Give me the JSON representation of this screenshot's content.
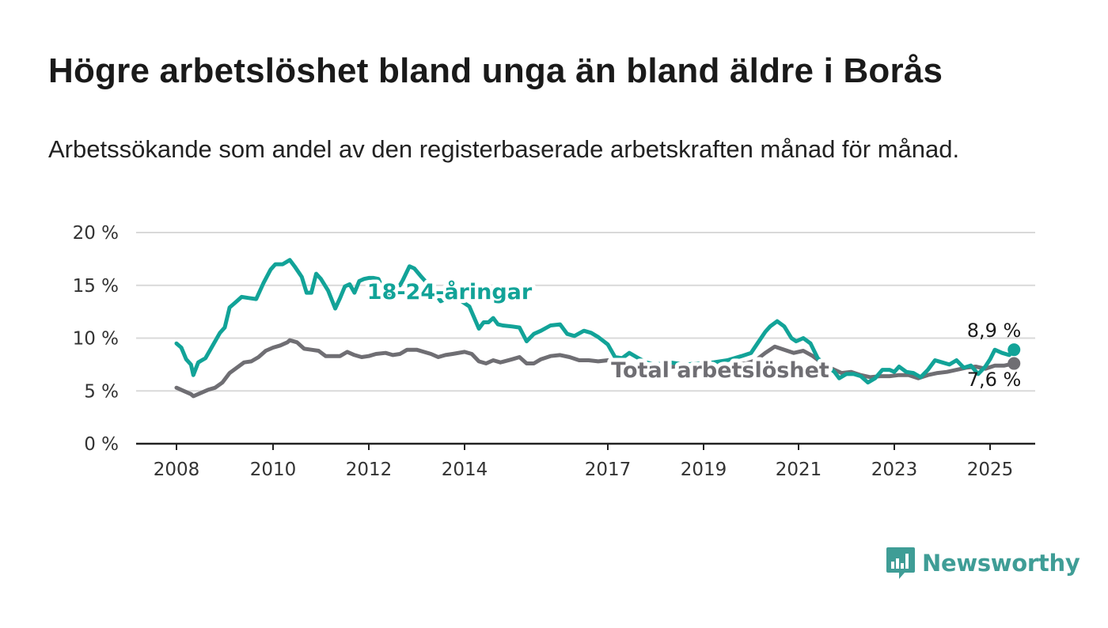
{
  "title": "Högre arbetslöshet bland unga än bland äldre i Borås",
  "subtitle": "Arbetssökande som andel av den registerbaserade arbetskraften månad för månad.",
  "brand": {
    "name": "Newsworthy",
    "color": "#3f9d96",
    "icon": "newsworthy-chart-icon"
  },
  "colors": {
    "youth": "#12a398",
    "total": "#6f6e73",
    "grid": "#d9d9d9",
    "axis": "#222222"
  },
  "chart_data": {
    "type": "line",
    "ylim": [
      0,
      20
    ],
    "xlim": [
      2008,
      2025.3
    ],
    "y_ticks": [
      0,
      5,
      10,
      15,
      20
    ],
    "y_tick_labels": [
      "0 %",
      "5 %",
      "10 %",
      "15 %",
      "20 %"
    ],
    "x_ticks": [
      2008,
      2010,
      2012,
      2014,
      2017,
      2019,
      2021,
      2023,
      2025
    ],
    "x_tick_labels": [
      "2008",
      "2010",
      "2012",
      "2014",
      "2017",
      "2019",
      "2021",
      "2023",
      "2025"
    ],
    "grid": true,
    "series": [
      {
        "name": "18-24-åringar",
        "color": "#12a398",
        "end_label": "8,9 %",
        "points": [
          [
            2008.0,
            9.5
          ],
          [
            2008.1,
            9.1
          ],
          [
            2008.2,
            8.0
          ],
          [
            2008.3,
            7.5
          ],
          [
            2008.35,
            6.5
          ],
          [
            2008.45,
            7.7
          ],
          [
            2008.6,
            8.1
          ],
          [
            2008.75,
            9.3
          ],
          [
            2008.9,
            10.5
          ],
          [
            2009.0,
            11.0
          ],
          [
            2009.1,
            12.9
          ],
          [
            2009.25,
            13.5
          ],
          [
            2009.35,
            13.9
          ],
          [
            2009.5,
            13.8
          ],
          [
            2009.65,
            13.7
          ],
          [
            2009.8,
            15.2
          ],
          [
            2009.95,
            16.5
          ],
          [
            2010.05,
            17.0
          ],
          [
            2010.2,
            17.0
          ],
          [
            2010.35,
            17.4
          ],
          [
            2010.45,
            16.8
          ],
          [
            2010.6,
            15.8
          ],
          [
            2010.7,
            14.3
          ],
          [
            2010.8,
            14.3
          ],
          [
            2010.9,
            16.1
          ],
          [
            2011.0,
            15.6
          ],
          [
            2011.15,
            14.5
          ],
          [
            2011.3,
            12.8
          ],
          [
            2011.4,
            13.8
          ],
          [
            2011.5,
            14.9
          ],
          [
            2011.6,
            15.1
          ],
          [
            2011.7,
            14.3
          ],
          [
            2011.8,
            15.4
          ],
          [
            2011.9,
            15.6
          ],
          [
            2012.0,
            15.7
          ],
          [
            2012.1,
            15.7
          ],
          [
            2012.2,
            15.6
          ],
          [
            2012.35,
            14.1
          ],
          [
            2012.5,
            13.9
          ],
          [
            2012.7,
            15.4
          ],
          [
            2012.85,
            16.8
          ],
          [
            2012.95,
            16.6
          ],
          [
            2013.1,
            15.8
          ],
          [
            2013.3,
            14.8
          ],
          [
            2013.5,
            13.5
          ],
          [
            2013.7,
            13.9
          ],
          [
            2013.9,
            13.6
          ],
          [
            2014.1,
            13.0
          ],
          [
            2014.3,
            10.9
          ],
          [
            2014.4,
            11.5
          ],
          [
            2014.5,
            11.5
          ],
          [
            2014.6,
            11.9
          ],
          [
            2014.7,
            11.3
          ],
          [
            2014.8,
            11.2
          ],
          [
            2015.0,
            11.1
          ],
          [
            2015.15,
            11.0
          ],
          [
            2015.3,
            9.7
          ],
          [
            2015.45,
            10.4
          ],
          [
            2015.6,
            10.7
          ],
          [
            2015.8,
            11.2
          ],
          [
            2016.0,
            11.3
          ],
          [
            2016.15,
            10.4
          ],
          [
            2016.3,
            10.2
          ],
          [
            2016.5,
            10.7
          ],
          [
            2016.65,
            10.5
          ],
          [
            2016.8,
            10.1
          ],
          [
            2017.0,
            9.4
          ],
          [
            2017.15,
            8.2
          ],
          [
            2017.3,
            8.1
          ],
          [
            2017.45,
            8.6
          ],
          [
            2017.6,
            8.2
          ],
          [
            2017.8,
            7.7
          ],
          [
            2018.0,
            7.5
          ],
          [
            2018.3,
            7.7
          ],
          [
            2018.6,
            7.5
          ],
          [
            2018.9,
            7.6
          ],
          [
            2019.2,
            7.7
          ],
          [
            2019.5,
            7.9
          ],
          [
            2019.8,
            8.3
          ],
          [
            2020.0,
            8.6
          ],
          [
            2020.15,
            9.6
          ],
          [
            2020.3,
            10.6
          ],
          [
            2020.4,
            11.1
          ],
          [
            2020.55,
            11.6
          ],
          [
            2020.7,
            11.1
          ],
          [
            2020.85,
            10.0
          ],
          [
            2020.95,
            9.7
          ],
          [
            2021.1,
            10.0
          ],
          [
            2021.25,
            9.5
          ],
          [
            2021.4,
            8.1
          ],
          [
            2021.6,
            7.3
          ],
          [
            2021.75,
            6.8
          ],
          [
            2021.85,
            6.2
          ],
          [
            2022.0,
            6.6
          ],
          [
            2022.15,
            6.6
          ],
          [
            2022.3,
            6.4
          ],
          [
            2022.45,
            5.8
          ],
          [
            2022.6,
            6.2
          ],
          [
            2022.75,
            7.0
          ],
          [
            2022.9,
            7.0
          ],
          [
            2023.0,
            6.8
          ],
          [
            2023.1,
            7.3
          ],
          [
            2023.25,
            6.8
          ],
          [
            2023.4,
            6.7
          ],
          [
            2023.55,
            6.3
          ],
          [
            2023.7,
            7.0
          ],
          [
            2023.85,
            7.9
          ],
          [
            2024.0,
            7.7
          ],
          [
            2024.15,
            7.5
          ],
          [
            2024.3,
            7.9
          ],
          [
            2024.45,
            7.2
          ],
          [
            2024.6,
            7.4
          ],
          [
            2024.75,
            6.6
          ],
          [
            2024.9,
            7.3
          ],
          [
            2025.0,
            8.0
          ],
          [
            2025.1,
            8.9
          ],
          [
            2025.25,
            8.6
          ],
          [
            2025.4,
            8.4
          ],
          [
            2025.5,
            8.9
          ]
        ]
      },
      {
        "name": "Total arbetslöshet",
        "color": "#6f6e73",
        "end_label": "7,6 %",
        "points": [
          [
            2008.0,
            5.3
          ],
          [
            2008.15,
            5.0
          ],
          [
            2008.3,
            4.7
          ],
          [
            2008.35,
            4.5
          ],
          [
            2008.5,
            4.8
          ],
          [
            2008.65,
            5.1
          ],
          [
            2008.8,
            5.3
          ],
          [
            2008.95,
            5.8
          ],
          [
            2009.1,
            6.7
          ],
          [
            2009.25,
            7.2
          ],
          [
            2009.4,
            7.7
          ],
          [
            2009.55,
            7.8
          ],
          [
            2009.7,
            8.2
          ],
          [
            2009.85,
            8.8
          ],
          [
            2010.0,
            9.1
          ],
          [
            2010.15,
            9.3
          ],
          [
            2010.3,
            9.6
          ],
          [
            2010.35,
            9.8
          ],
          [
            2010.5,
            9.6
          ],
          [
            2010.65,
            9.0
          ],
          [
            2010.8,
            8.9
          ],
          [
            2010.95,
            8.8
          ],
          [
            2011.1,
            8.3
          ],
          [
            2011.25,
            8.3
          ],
          [
            2011.4,
            8.3
          ],
          [
            2011.55,
            8.7
          ],
          [
            2011.7,
            8.4
          ],
          [
            2011.85,
            8.2
          ],
          [
            2012.0,
            8.3
          ],
          [
            2012.15,
            8.5
          ],
          [
            2012.35,
            8.6
          ],
          [
            2012.5,
            8.4
          ],
          [
            2012.65,
            8.5
          ],
          [
            2012.8,
            8.9
          ],
          [
            2013.0,
            8.9
          ],
          [
            2013.15,
            8.7
          ],
          [
            2013.3,
            8.5
          ],
          [
            2013.45,
            8.2
          ],
          [
            2013.6,
            8.4
          ],
          [
            2013.75,
            8.5
          ],
          [
            2014.0,
            8.7
          ],
          [
            2014.15,
            8.5
          ],
          [
            2014.3,
            7.8
          ],
          [
            2014.45,
            7.6
          ],
          [
            2014.6,
            7.9
          ],
          [
            2014.75,
            7.7
          ],
          [
            2015.0,
            8.0
          ],
          [
            2015.15,
            8.2
          ],
          [
            2015.3,
            7.6
          ],
          [
            2015.45,
            7.6
          ],
          [
            2015.6,
            8.0
          ],
          [
            2015.8,
            8.3
          ],
          [
            2016.0,
            8.4
          ],
          [
            2016.2,
            8.2
          ],
          [
            2016.4,
            7.9
          ],
          [
            2016.6,
            7.9
          ],
          [
            2016.8,
            7.8
          ],
          [
            2017.0,
            7.9
          ],
          [
            2017.2,
            7.6
          ],
          [
            2017.5,
            7.5
          ],
          [
            2017.8,
            7.4
          ],
          [
            2018.1,
            7.2
          ],
          [
            2018.4,
            7.3
          ],
          [
            2018.7,
            7.3
          ],
          [
            2019.0,
            7.4
          ],
          [
            2019.3,
            7.4
          ],
          [
            2019.6,
            7.5
          ],
          [
            2019.9,
            7.6
          ],
          [
            2020.1,
            7.9
          ],
          [
            2020.3,
            8.6
          ],
          [
            2020.5,
            9.2
          ],
          [
            2020.7,
            8.9
          ],
          [
            2020.9,
            8.6
          ],
          [
            2021.1,
            8.8
          ],
          [
            2021.3,
            8.3
          ],
          [
            2021.5,
            7.6
          ],
          [
            2021.7,
            7.1
          ],
          [
            2021.9,
            6.7
          ],
          [
            2022.1,
            6.8
          ],
          [
            2022.3,
            6.5
          ],
          [
            2022.5,
            6.3
          ],
          [
            2022.7,
            6.4
          ],
          [
            2022.9,
            6.4
          ],
          [
            2023.1,
            6.5
          ],
          [
            2023.3,
            6.5
          ],
          [
            2023.5,
            6.2
          ],
          [
            2023.7,
            6.5
          ],
          [
            2023.9,
            6.7
          ],
          [
            2024.1,
            6.8
          ],
          [
            2024.3,
            7.0
          ],
          [
            2024.5,
            7.2
          ],
          [
            2024.7,
            7.3
          ],
          [
            2024.9,
            7.1
          ],
          [
            2025.1,
            7.4
          ],
          [
            2025.3,
            7.4
          ],
          [
            2025.5,
            7.6
          ]
        ]
      }
    ]
  }
}
